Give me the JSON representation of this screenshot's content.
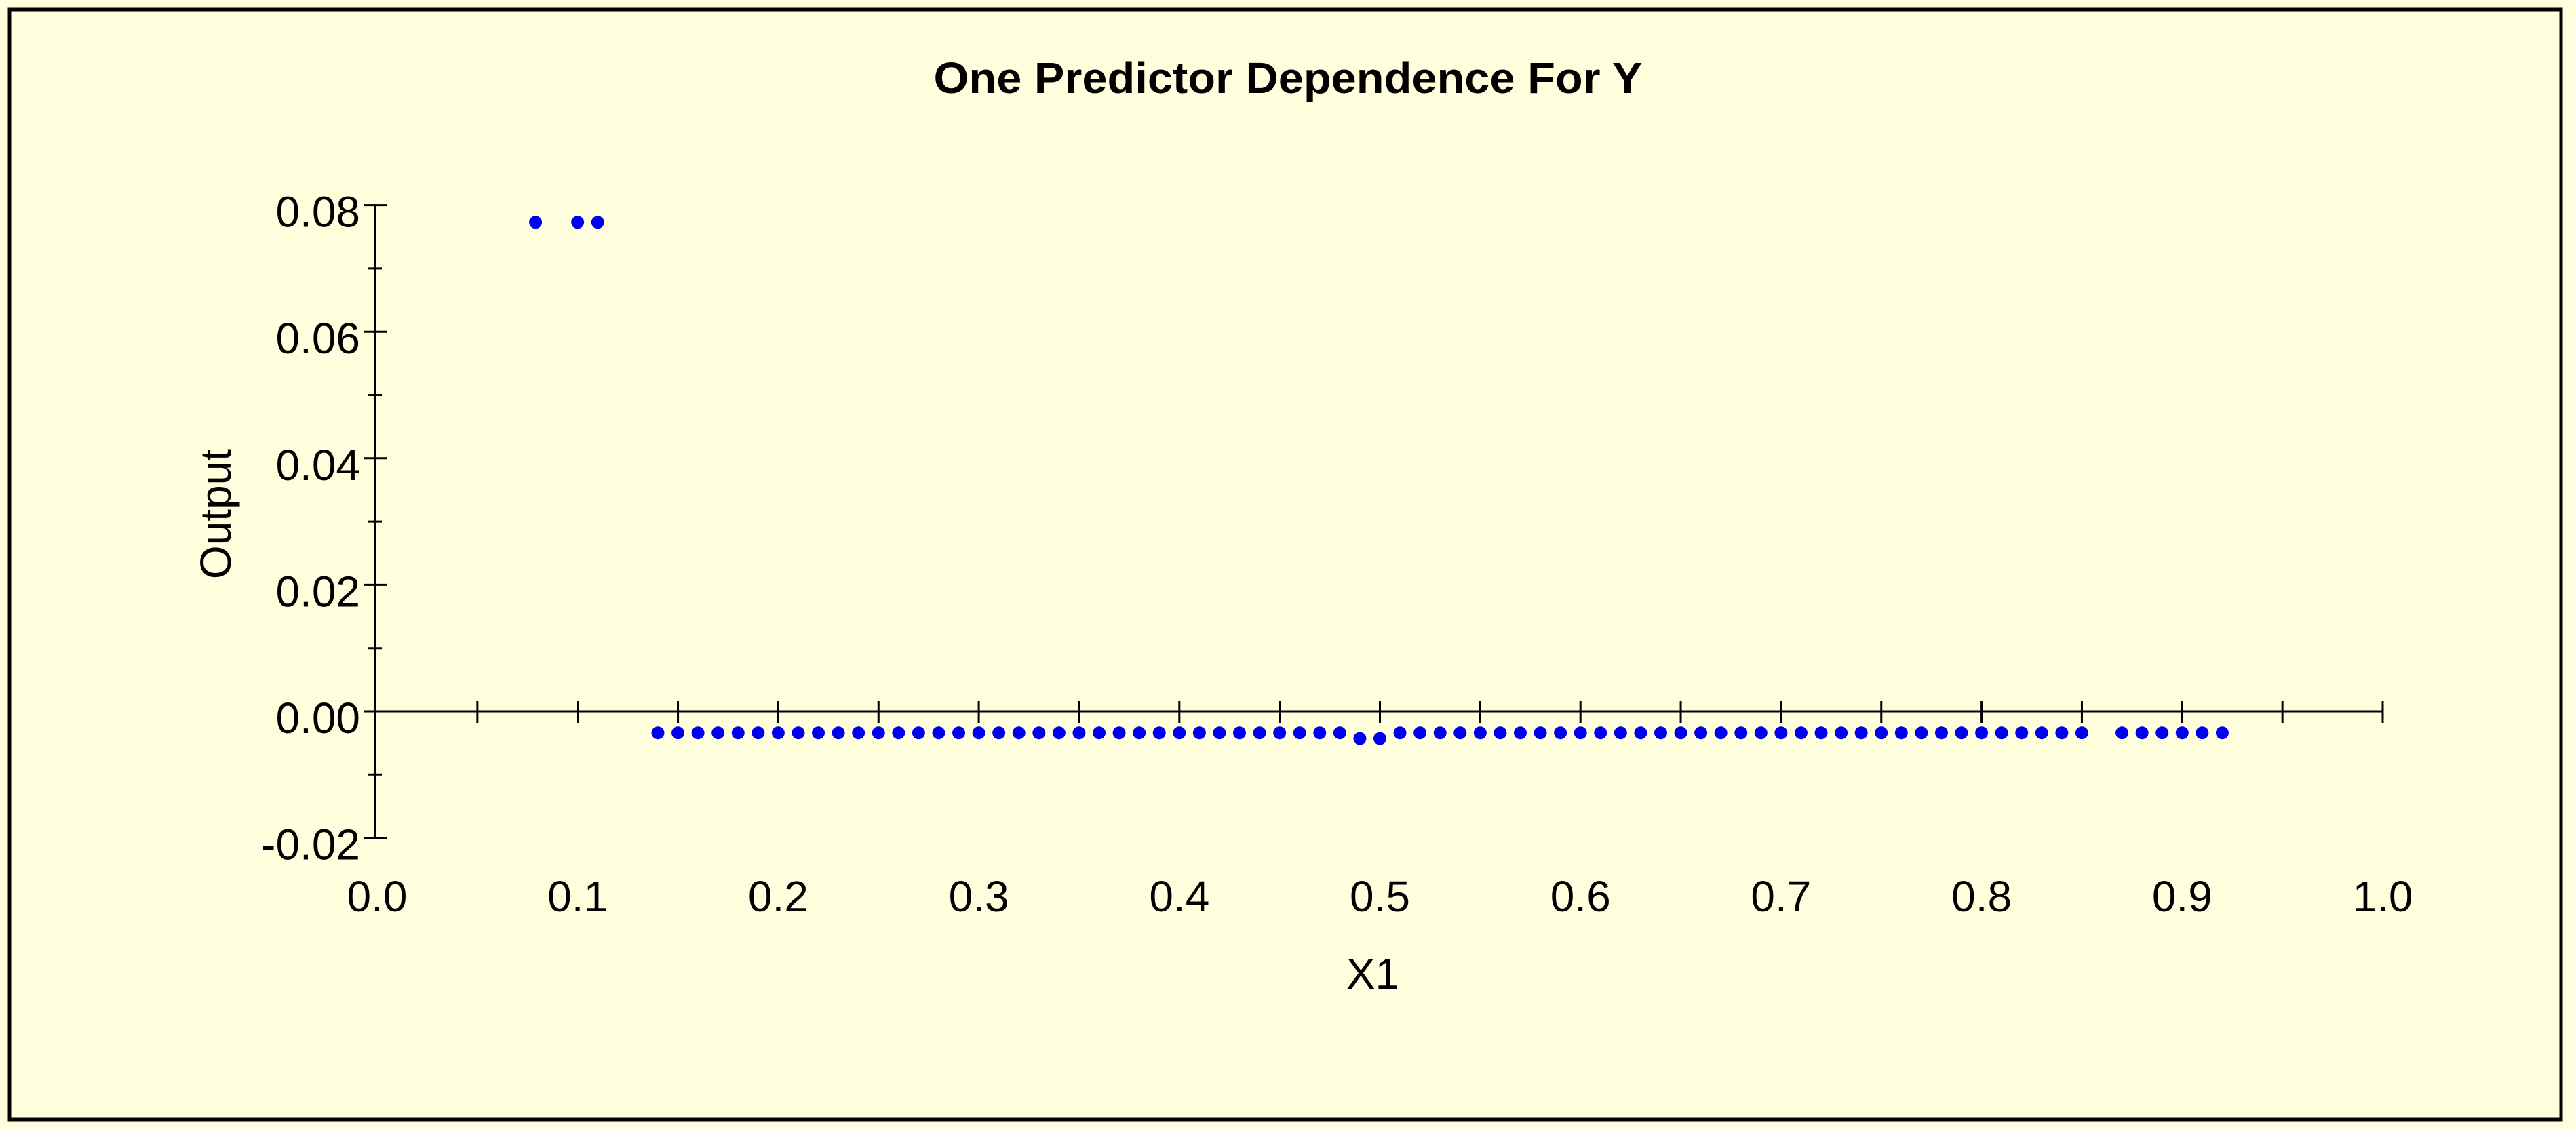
{
  "colors": {
    "background": "#FFFFDE",
    "frame": "#000000",
    "axis": "#000000",
    "text": "#000000",
    "point": "#0000EE"
  },
  "chart_data": {
    "type": "scatter",
    "title": "One Predictor Dependence For Y",
    "xlabel": "X1",
    "ylabel": "Output",
    "xlim": [
      0.0,
      1.0
    ],
    "ylim": [
      -0.02,
      0.08
    ],
    "grid": false,
    "legend": false,
    "x_axis": {
      "tick_mark_values": [
        0.05,
        0.1,
        0.15,
        0.2,
        0.25,
        0.3,
        0.35,
        0.4,
        0.45,
        0.5,
        0.55,
        0.6,
        0.65,
        0.7,
        0.75,
        0.8,
        0.85,
        0.9,
        0.95,
        1.0
      ],
      "tick_labels": [
        {
          "value": 0.0,
          "label": "0.0"
        },
        {
          "value": 0.1,
          "label": "0.1"
        },
        {
          "value": 0.2,
          "label": "0.2"
        },
        {
          "value": 0.3,
          "label": "0.3"
        },
        {
          "value": 0.4,
          "label": "0.4"
        },
        {
          "value": 0.5,
          "label": "0.5"
        },
        {
          "value": 0.6,
          "label": "0.6"
        },
        {
          "value": 0.7,
          "label": "0.7"
        },
        {
          "value": 0.8,
          "label": "0.8"
        },
        {
          "value": 0.9,
          "label": "0.9"
        },
        {
          "value": 1.0,
          "label": "1.0"
        }
      ]
    },
    "y_axis": {
      "major_tick_labels": [
        {
          "value": 0.08,
          "label": "0.08"
        },
        {
          "value": 0.06,
          "label": "0.06"
        },
        {
          "value": 0.04,
          "label": "0.04"
        },
        {
          "value": 0.02,
          "label": "0.02"
        },
        {
          "value": 0.0,
          "label": "0.00"
        },
        {
          "value": -0.02,
          "label": "-0.02"
        }
      ],
      "minor_tick_values": [
        0.07,
        0.05,
        0.03,
        0.01,
        -0.01
      ]
    },
    "series": [
      {
        "name": "partial-dependence-points",
        "marker": "circle",
        "color": "#0000EE",
        "points": [
          [
            0.079,
            0.0773
          ],
          [
            0.1,
            0.0773
          ],
          [
            0.11,
            0.0773
          ],
          [
            0.14,
            -0.0034
          ],
          [
            0.15,
            -0.0034
          ],
          [
            0.16,
            -0.0034
          ],
          [
            0.17,
            -0.0034
          ],
          [
            0.18,
            -0.0034
          ],
          [
            0.19,
            -0.0034
          ],
          [
            0.2,
            -0.0034
          ],
          [
            0.21,
            -0.0034
          ],
          [
            0.22,
            -0.0034
          ],
          [
            0.23,
            -0.0034
          ],
          [
            0.24,
            -0.0034
          ],
          [
            0.25,
            -0.0034
          ],
          [
            0.26,
            -0.0034
          ],
          [
            0.27,
            -0.0034
          ],
          [
            0.28,
            -0.0034
          ],
          [
            0.29,
            -0.0034
          ],
          [
            0.3,
            -0.0034
          ],
          [
            0.31,
            -0.0034
          ],
          [
            0.32,
            -0.0034
          ],
          [
            0.33,
            -0.0034
          ],
          [
            0.34,
            -0.0034
          ],
          [
            0.35,
            -0.0034
          ],
          [
            0.36,
            -0.0034
          ],
          [
            0.37,
            -0.0034
          ],
          [
            0.38,
            -0.0034
          ],
          [
            0.39,
            -0.0034
          ],
          [
            0.4,
            -0.0034
          ],
          [
            0.41,
            -0.0034
          ],
          [
            0.42,
            -0.0034
          ],
          [
            0.43,
            -0.0034
          ],
          [
            0.44,
            -0.0034
          ],
          [
            0.45,
            -0.0034
          ],
          [
            0.46,
            -0.0034
          ],
          [
            0.47,
            -0.0034
          ],
          [
            0.48,
            -0.0034
          ],
          [
            0.49,
            -0.0043
          ],
          [
            0.5,
            -0.0043
          ],
          [
            0.51,
            -0.0034
          ],
          [
            0.52,
            -0.0034
          ],
          [
            0.53,
            -0.0034
          ],
          [
            0.54,
            -0.0034
          ],
          [
            0.55,
            -0.0034
          ],
          [
            0.56,
            -0.0034
          ],
          [
            0.57,
            -0.0034
          ],
          [
            0.58,
            -0.0034
          ],
          [
            0.59,
            -0.0034
          ],
          [
            0.6,
            -0.0034
          ],
          [
            0.61,
            -0.0034
          ],
          [
            0.62,
            -0.0034
          ],
          [
            0.63,
            -0.0034
          ],
          [
            0.64,
            -0.0034
          ],
          [
            0.65,
            -0.0034
          ],
          [
            0.66,
            -0.0034
          ],
          [
            0.67,
            -0.0034
          ],
          [
            0.68,
            -0.0034
          ],
          [
            0.69,
            -0.0034
          ],
          [
            0.7,
            -0.0034
          ],
          [
            0.71,
            -0.0034
          ],
          [
            0.72,
            -0.0034
          ],
          [
            0.73,
            -0.0034
          ],
          [
            0.74,
            -0.0034
          ],
          [
            0.75,
            -0.0034
          ],
          [
            0.76,
            -0.0034
          ],
          [
            0.77,
            -0.0034
          ],
          [
            0.78,
            -0.0034
          ],
          [
            0.79,
            -0.0034
          ],
          [
            0.8,
            -0.0034
          ],
          [
            0.81,
            -0.0034
          ],
          [
            0.82,
            -0.0034
          ],
          [
            0.83,
            -0.0034
          ],
          [
            0.84,
            -0.0034
          ],
          [
            0.85,
            -0.0034
          ],
          [
            0.87,
            -0.0034
          ],
          [
            0.88,
            -0.0034
          ],
          [
            0.89,
            -0.0034
          ],
          [
            0.9,
            -0.0034
          ],
          [
            0.91,
            -0.0034
          ],
          [
            0.92,
            -0.0034
          ]
        ]
      }
    ]
  }
}
